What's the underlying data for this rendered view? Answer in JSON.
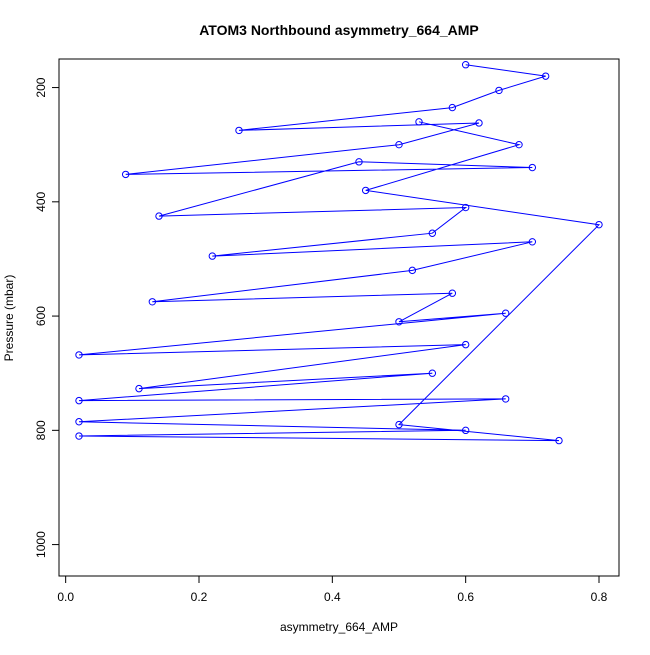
{
  "chart_data": {
    "type": "scatter",
    "title": "ATOM3 Northbound asymmetry_664_AMP",
    "xlabel": "asymmetry_664_AMP",
    "ylabel": "Pressure (mbar)",
    "x_ticks": [
      "0.0",
      "0.2",
      "0.4",
      "0.6",
      "0.8"
    ],
    "y_ticks": [
      "200",
      "400",
      "600",
      "800",
      "1000"
    ],
    "xlim": [
      -0.01,
      0.83
    ],
    "ylim": [
      1055,
      150
    ],
    "y_reversed": true,
    "grid": false,
    "legend": "none",
    "marker": "open-circle",
    "connected": true,
    "series_color": "#0000ff",
    "series": [
      {
        "points": [
          [
            0.6,
            160
          ],
          [
            0.72,
            180
          ],
          [
            0.65,
            205
          ],
          [
            0.58,
            235
          ],
          [
            0.26,
            275
          ],
          [
            0.62,
            262
          ],
          [
            0.5,
            300
          ],
          [
            0.09,
            352
          ],
          [
            0.7,
            340
          ],
          [
            0.44,
            330
          ],
          [
            0.14,
            425
          ],
          [
            0.6,
            410
          ],
          [
            0.55,
            455
          ],
          [
            0.22,
            495
          ],
          [
            0.7,
            470
          ],
          [
            0.52,
            520
          ],
          [
            0.13,
            575
          ],
          [
            0.58,
            560
          ],
          [
            0.5,
            610
          ],
          [
            0.66,
            595
          ],
          [
            0.02,
            668
          ],
          [
            0.6,
            650
          ],
          [
            0.11,
            727
          ],
          [
            0.55,
            700
          ],
          [
            0.02,
            748
          ],
          [
            0.66,
            745
          ],
          [
            0.02,
            785
          ],
          [
            0.6,
            800
          ],
          [
            0.02,
            810
          ],
          [
            0.74,
            818
          ],
          [
            0.5,
            790
          ],
          [
            0.8,
            440
          ],
          [
            0.45,
            380
          ],
          [
            0.68,
            300
          ],
          [
            0.53,
            260
          ]
        ]
      }
    ]
  }
}
